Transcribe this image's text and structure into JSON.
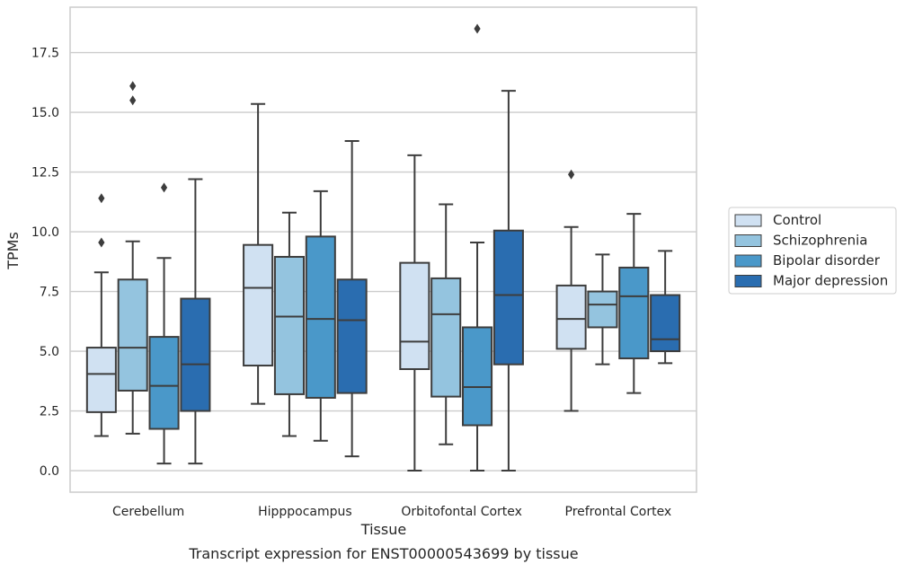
{
  "caption": "Transcript expression for ENST00000543699 by tissue",
  "chart_data": {
    "type": "boxplot",
    "xlabel": "Tissue",
    "ylabel": "TPMs",
    "ylim": [
      -0.9,
      19.4
    ],
    "yticks": [
      "0.0",
      "2.5",
      "5.0",
      "7.5",
      "10.0",
      "12.5",
      "15.0",
      "17.5"
    ],
    "grid": "horizontal",
    "legend_position": "right, outside plot",
    "categories": [
      "Cerebellum",
      "Hipppocampus",
      "Orbitofontal Cortex",
      "Prefrontal Cortex"
    ],
    "series": [
      {
        "name": "Control",
        "color": "#d0e1f2",
        "boxes": [
          {
            "whisker_low": 1.45,
            "q1": 2.45,
            "median": 4.05,
            "q3": 5.15,
            "whisker_high": 8.3,
            "outliers": [
              9.55,
              11.4
            ]
          },
          {
            "whisker_low": 2.8,
            "q1": 4.4,
            "median": 7.65,
            "q3": 9.45,
            "whisker_high": 15.35,
            "outliers": []
          },
          {
            "whisker_low": 0.0,
            "q1": 4.25,
            "median": 5.4,
            "q3": 8.7,
            "whisker_high": 13.2,
            "outliers": []
          },
          {
            "whisker_low": 2.5,
            "q1": 5.1,
            "median": 6.35,
            "q3": 7.75,
            "whisker_high": 10.2,
            "outliers": [
              12.4
            ]
          }
        ]
      },
      {
        "name": "Schizophrenia",
        "color": "#94c4df",
        "boxes": [
          {
            "whisker_low": 1.55,
            "q1": 3.35,
            "median": 5.15,
            "q3": 8.0,
            "whisker_high": 9.6,
            "outliers": [
              15.5,
              16.1
            ]
          },
          {
            "whisker_low": 1.45,
            "q1": 3.2,
            "median": 6.45,
            "q3": 8.95,
            "whisker_high": 10.8,
            "outliers": []
          },
          {
            "whisker_low": 1.1,
            "q1": 3.1,
            "median": 6.55,
            "q3": 8.05,
            "whisker_high": 11.15,
            "outliers": []
          },
          {
            "whisker_low": 4.45,
            "q1": 6.0,
            "median": 6.95,
            "q3": 7.5,
            "whisker_high": 9.05,
            "outliers": []
          }
        ]
      },
      {
        "name": "Bipolar disorder",
        "color": "#4a98c9",
        "boxes": [
          {
            "whisker_low": 0.3,
            "q1": 1.75,
            "median": 3.55,
            "q3": 5.6,
            "whisker_high": 8.9,
            "outliers": [
              11.85
            ]
          },
          {
            "whisker_low": 1.25,
            "q1": 3.05,
            "median": 6.35,
            "q3": 9.8,
            "whisker_high": 11.7,
            "outliers": []
          },
          {
            "whisker_low": 0.0,
            "q1": 1.9,
            "median": 3.5,
            "q3": 6.0,
            "whisker_high": 9.55,
            "outliers": [
              18.5
            ]
          },
          {
            "whisker_low": 3.25,
            "q1": 4.7,
            "median": 7.3,
            "q3": 8.5,
            "whisker_high": 10.75,
            "outliers": []
          }
        ]
      },
      {
        "name": "Major depression",
        "color": "#2a6db0",
        "boxes": [
          {
            "whisker_low": 0.3,
            "q1": 2.5,
            "median": 4.45,
            "q3": 7.2,
            "whisker_high": 12.2,
            "outliers": []
          },
          {
            "whisker_low": 0.6,
            "q1": 3.25,
            "median": 6.3,
            "q3": 8.0,
            "whisker_high": 13.8,
            "outliers": []
          },
          {
            "whisker_low": 0.0,
            "q1": 4.45,
            "median": 7.35,
            "q3": 10.05,
            "whisker_high": 15.9,
            "outliers": []
          },
          {
            "whisker_low": 4.5,
            "q1": 5.0,
            "median": 5.5,
            "q3": 7.35,
            "whisker_high": 9.2,
            "outliers": []
          }
        ]
      }
    ]
  }
}
